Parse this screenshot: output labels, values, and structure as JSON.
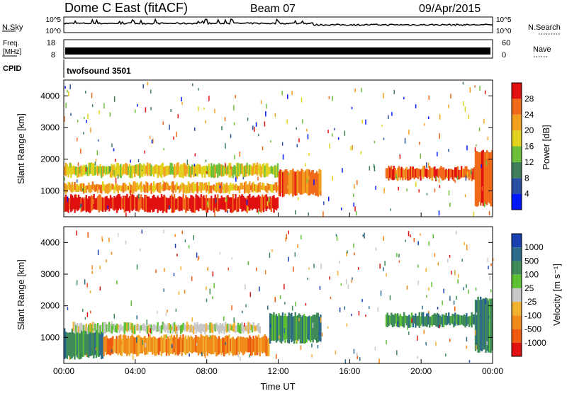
{
  "header": {
    "title": "Dome C East (fitACF)",
    "beam": "Beam 07",
    "date": "09/Apr/2015"
  },
  "top_panels": {
    "nsky_label": "N.Sky",
    "nsky_ticks": [
      "10^5",
      "10^0"
    ],
    "nsearch_ticks": [
      "10^5",
      "10^0"
    ],
    "nsearch_label": "N.Search",
    "freq_label_1": "Freq.",
    "freq_label_2": "[MHz]",
    "freq_ticks": [
      "18",
      "8"
    ],
    "nave_ticks": [
      "60",
      "0"
    ],
    "nave_label": "Nave",
    "cpid_label": "CPID",
    "cpid_value": "twofsound 3501"
  },
  "chart_data": [
    {
      "type": "heatmap",
      "name": "power",
      "ylabel": "Slant Range [km]",
      "y_ticks": [
        "1000",
        "2000",
        "3000",
        "4000"
      ],
      "y_tick_values": [
        1000,
        2000,
        3000,
        4000
      ],
      "ylim": [
        180,
        4500
      ],
      "xlim_hours": [
        0,
        24
      ],
      "colorbar_label": "Power [dB]",
      "colorbar_ticks": [
        "4",
        "8",
        "12",
        "16",
        "20",
        "24",
        "28"
      ],
      "colorbar_colors": [
        "#0018ff",
        "#2a4fa0",
        "#3e7f5a",
        "#6ec03a",
        "#e0d21e",
        "#f2a020",
        "#f06a1a",
        "#e01010"
      ],
      "bands": [
        {
          "t0": 0,
          "t1": 12,
          "r0": 300,
          "r1": 900,
          "level": 7
        },
        {
          "t0": 0,
          "t1": 12,
          "r0": 900,
          "r1": 1300,
          "level": 5
        },
        {
          "t0": 0,
          "t1": 12,
          "r0": 1400,
          "r1": 1900,
          "level": 4
        },
        {
          "t0": 12,
          "t1": 14.4,
          "r0": 800,
          "r1": 1700,
          "level": 6
        },
        {
          "t0": 18,
          "t1": 23,
          "r0": 1300,
          "r1": 1800,
          "level": 6
        },
        {
          "t0": 23,
          "t1": 24,
          "r0": 500,
          "r1": 2300,
          "level": 6
        }
      ]
    },
    {
      "type": "heatmap",
      "name": "velocity",
      "ylabel": "Slant Range [km]",
      "y_ticks": [
        "1000",
        "2000",
        "3000",
        "4000"
      ],
      "y_tick_values": [
        1000,
        2000,
        3000,
        4000
      ],
      "ylim": [
        180,
        4500
      ],
      "xlim_hours": [
        0,
        24
      ],
      "colorbar_label": "Velocity [m s⁻¹]",
      "colorbar_ticks": [
        "1000",
        "500",
        "100",
        "25",
        "-25",
        "-100",
        "-500",
        "-1000"
      ],
      "colorbar_colors": [
        "#1a3fb0",
        "#2e6a8a",
        "#3e8a58",
        "#5cc032",
        "#c8c8c8",
        "#f0b030",
        "#f08a1a",
        "#ee5a10",
        "#e01010"
      ],
      "bands": [
        {
          "t0": 0,
          "t1": 2.2,
          "r0": 300,
          "r1": 1300,
          "level": 2
        },
        {
          "t0": 2.2,
          "t1": 11.5,
          "r0": 400,
          "r1": 1100,
          "level": 6
        },
        {
          "t0": 0.5,
          "t1": 11,
          "r0": 1100,
          "r1": 1500,
          "level": 4
        },
        {
          "t0": 11.5,
          "t1": 14.4,
          "r0": 800,
          "r1": 1800,
          "level": 2
        },
        {
          "t0": 18,
          "t1": 23,
          "r0": 1300,
          "r1": 1800,
          "level": 2
        },
        {
          "t0": 23,
          "t1": 24,
          "r0": 500,
          "r1": 2300,
          "level": 2
        }
      ]
    }
  ],
  "x_axis": {
    "ticks": [
      "00:00",
      "04:00",
      "08:00",
      "12:00",
      "16:00",
      "20:00",
      "00:00"
    ],
    "tick_hours": [
      0,
      4,
      8,
      12,
      16,
      20,
      24
    ],
    "label": "Time UT"
  }
}
